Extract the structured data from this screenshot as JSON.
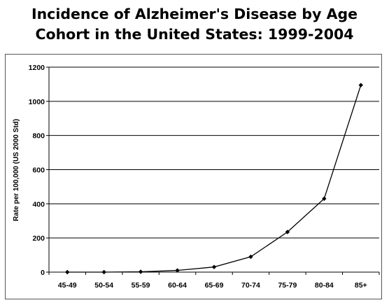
{
  "chart_data": {
    "type": "line",
    "title_lines": [
      "Incidence of Alzheimer's Disease by Age",
      "Cohort in the United States: 1999-2004"
    ],
    "xlabel": "",
    "ylabel": "Rate per 100,000 (US 2000 Std)",
    "categories": [
      "45-49",
      "50-54",
      "55-59",
      "60-64",
      "65-69",
      "70-74",
      "75-79",
      "80-84",
      "85+"
    ],
    "values": [
      0,
      0,
      2,
      10,
      30,
      90,
      235,
      430,
      1095
    ],
    "ylim": [
      0,
      1200
    ],
    "yticks": [
      0,
      200,
      400,
      600,
      800,
      1000,
      1200
    ],
    "grid": true,
    "line_color": "#000000",
    "marker": "diamond"
  }
}
